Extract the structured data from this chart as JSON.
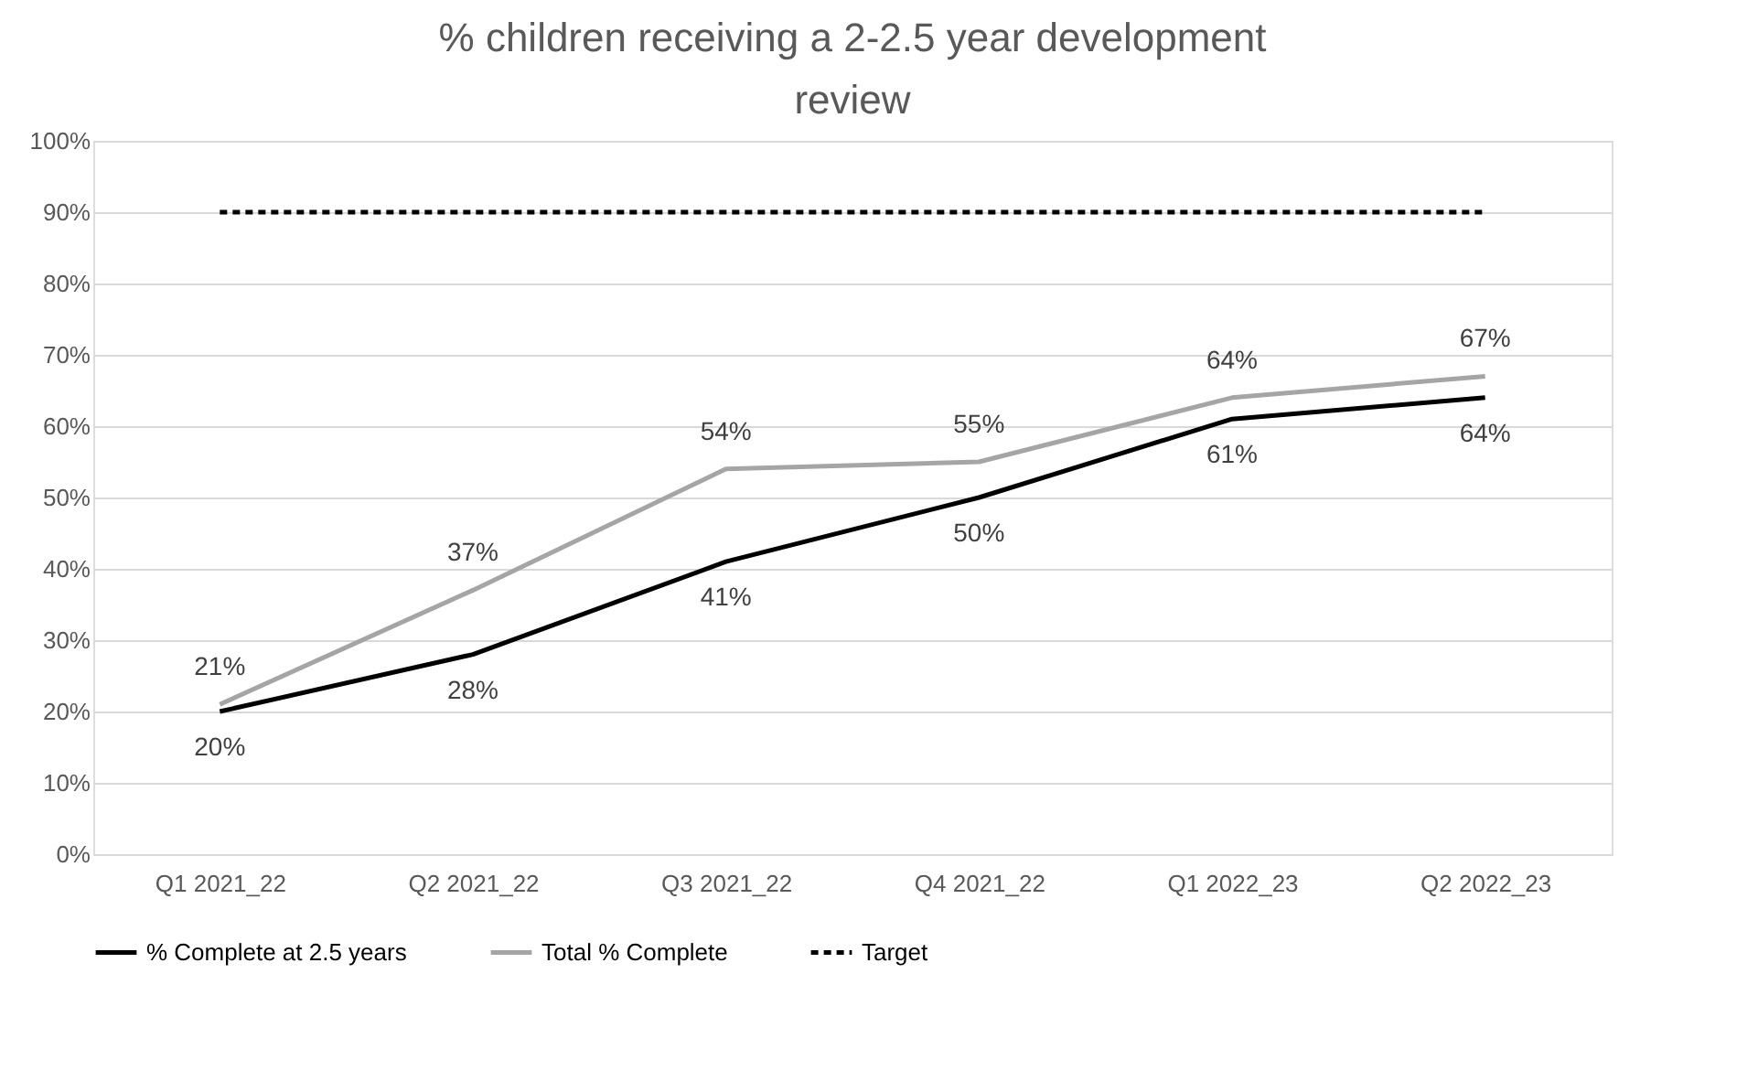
{
  "chart_data": {
    "type": "line",
    "title": "% children receiving a 2-2.5 year development review",
    "categories": [
      "Q1 2021_22",
      "Q2 2021_22",
      "Q3 2021_22",
      "Q4 2021_22",
      "Q1 2022_23",
      "Q2 2022_23"
    ],
    "series": [
      {
        "name": "% Complete at 2.5 years",
        "color": "#000000",
        "values": [
          20,
          28,
          41,
          50,
          61,
          64
        ],
        "value_labels": [
          "20%",
          "28%",
          "41%",
          "50%",
          "61%",
          "64%"
        ],
        "line_style": "solid"
      },
      {
        "name": "Total % Complete",
        "color": "#a5a5a5",
        "values": [
          21,
          37,
          54,
          55,
          64,
          67
        ],
        "value_labels": [
          "21%",
          "37%",
          "54%",
          "55%",
          "64%",
          "67%"
        ],
        "line_style": "solid"
      },
      {
        "name": "Target",
        "color": "#000000",
        "values": [
          90,
          90,
          90,
          90,
          90,
          90
        ],
        "line_style": "dashed"
      }
    ],
    "ylim": [
      0,
      100
    ],
    "yticks": [
      {
        "value": 0,
        "label": "0%"
      },
      {
        "value": 10,
        "label": "10%"
      },
      {
        "value": 20,
        "label": "20%"
      },
      {
        "value": 30,
        "label": "30%"
      },
      {
        "value": 40,
        "label": "40%"
      },
      {
        "value": 50,
        "label": "50%"
      },
      {
        "value": 60,
        "label": "60%"
      },
      {
        "value": 70,
        "label": "70%"
      },
      {
        "value": 80,
        "label": "80%"
      },
      {
        "value": 90,
        "label": "90%"
      },
      {
        "value": 100,
        "label": "100%"
      }
    ],
    "grid": "y",
    "legend": "bottom",
    "marker": "none"
  }
}
